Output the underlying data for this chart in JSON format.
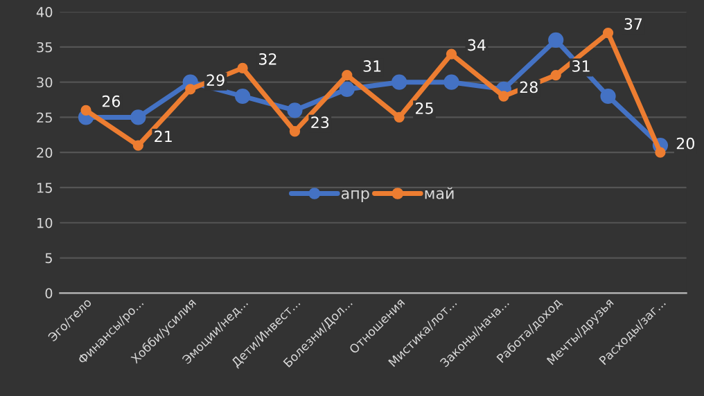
{
  "chart_data": {
    "type": "line",
    "categories": [
      "Эго/тело",
      "Финансы/ро...",
      "Хобби/усилия",
      "Эмоции/нед...",
      "Дети/Инвест...",
      "Болезни/Дол...",
      "Отношения",
      "Мистика/лот...",
      "Законы/нача...",
      "Работа/доход",
      "Мечты/друзья",
      "Расходы/заг..."
    ],
    "series": [
      {
        "name": "апр",
        "color": "#4472c4",
        "values": [
          25,
          25,
          30,
          28,
          26,
          29,
          30,
          30,
          29,
          36,
          28,
          21
        ]
      },
      {
        "name": "май",
        "color": "#ed7d31",
        "values": [
          26,
          21,
          29,
          32,
          23,
          31,
          25,
          34,
          28,
          31,
          37,
          20
        ],
        "value_labels": [
          "26",
          "21",
          "29",
          "32",
          "23",
          "31",
          "25",
          "34",
          "28",
          "31",
          "37",
          "20"
        ]
      }
    ],
    "ylim": [
      0,
      40
    ],
    "yticks": [
      0,
      5,
      10,
      15,
      20,
      25,
      30,
      35,
      40
    ],
    "grid": "y",
    "legend": "center",
    "marker": "circle",
    "line_style": "solid"
  }
}
